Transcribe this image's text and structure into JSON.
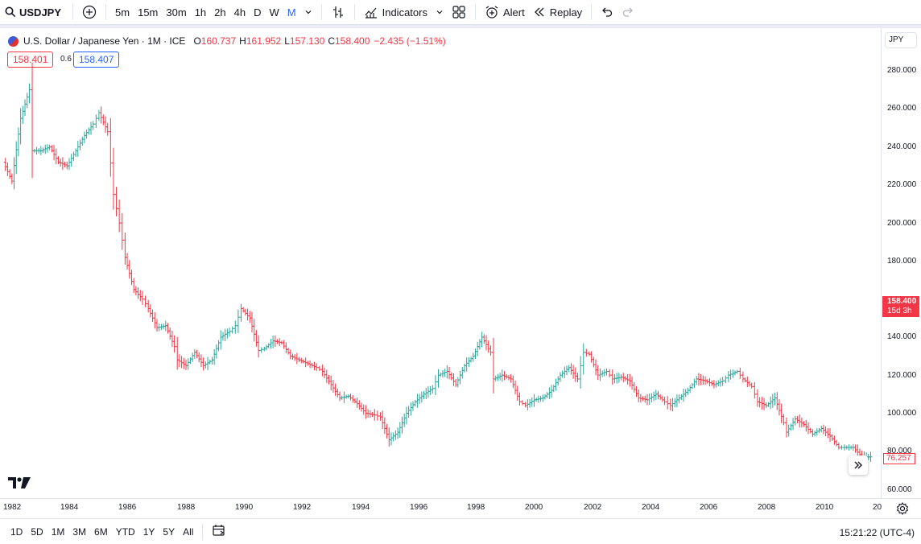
{
  "toolbar": {
    "symbol": "USDJPY",
    "intervals": [
      "5m",
      "15m",
      "30m",
      "1h",
      "2h",
      "4h",
      "D",
      "W",
      "M"
    ],
    "active_interval": "M",
    "indicators_label": "Indicators",
    "alert_label": "Alert",
    "replay_label": "Replay"
  },
  "legend": {
    "title": "U.S. Dollar / Japanese Yen · 1M · ICE",
    "open_k": "O",
    "open": "160.737",
    "high_k": "H",
    "high": "161.952",
    "low_k": "L",
    "low": "157.130",
    "close_k": "C",
    "close": "158.400",
    "change": "−2.435 (−1.51%)",
    "bid": "158.401",
    "spread": "0.6",
    "ask": "158.407"
  },
  "price_axis": {
    "currency": "JPY",
    "labels": [
      "280.000",
      "260.000",
      "240.000",
      "220.000",
      "200.000",
      "180.000",
      "140.000",
      "120.000",
      "100.000",
      "80.000",
      "60.000"
    ],
    "last_price": "158.400",
    "countdown": "15d 3h",
    "low_marker": "76.257"
  },
  "time_axis": {
    "labels": [
      "1982",
      "1984",
      "1986",
      "1988",
      "1990",
      "1992",
      "1994",
      "1996",
      "1998",
      "2000",
      "2002",
      "2004",
      "2006",
      "2008",
      "2010",
      "20"
    ]
  },
  "bottom": {
    "ranges": [
      "1D",
      "5D",
      "1M",
      "3M",
      "6M",
      "YTD",
      "1Y",
      "5Y",
      "All"
    ],
    "clock": "15:21:22 (UTC-4)"
  },
  "colors": {
    "up": "#26a69a",
    "down": "#f23645",
    "accent": "#2962ff"
  },
  "chart_data": {
    "type": "ohlc",
    "title": "U.S. Dollar / Japanese Yen · 1M · ICE",
    "x_range": [
      1982,
      2012
    ],
    "ylim": [
      60,
      290
    ],
    "grid": false,
    "points": [
      [
        1982.0,
        232
      ],
      [
        1982.3,
        222
      ],
      [
        1982.6,
        255
      ],
      [
        1982.9,
        270
      ],
      [
        1983.0,
        238
      ],
      [
        1983.3,
        238
      ],
      [
        1983.6,
        240
      ],
      [
        1983.9,
        232
      ],
      [
        1984.2,
        230
      ],
      [
        1984.5,
        238
      ],
      [
        1984.8,
        246
      ],
      [
        1985.1,
        252
      ],
      [
        1985.3,
        258
      ],
      [
        1985.6,
        248
      ],
      [
        1985.8,
        215
      ],
      [
        1986.0,
        200
      ],
      [
        1986.2,
        182
      ],
      [
        1986.5,
        165
      ],
      [
        1986.8,
        160
      ],
      [
        1987.0,
        155
      ],
      [
        1987.3,
        145
      ],
      [
        1987.6,
        146
      ],
      [
        1987.9,
        135
      ],
      [
        1988.0,
        128
      ],
      [
        1988.3,
        125
      ],
      [
        1988.6,
        132
      ],
      [
        1988.9,
        125
      ],
      [
        1989.2,
        128
      ],
      [
        1989.5,
        140
      ],
      [
        1989.8,
        143
      ],
      [
        1990.0,
        146
      ],
      [
        1990.2,
        155
      ],
      [
        1990.5,
        150
      ],
      [
        1990.8,
        133
      ],
      [
        1991.0,
        134
      ],
      [
        1991.3,
        138
      ],
      [
        1991.6,
        137
      ],
      [
        1991.9,
        130
      ],
      [
        1992.2,
        128
      ],
      [
        1992.5,
        126
      ],
      [
        1992.8,
        124
      ],
      [
        1993.0,
        122
      ],
      [
        1993.3,
        115
      ],
      [
        1993.6,
        108
      ],
      [
        1993.9,
        109
      ],
      [
        1994.2,
        105
      ],
      [
        1994.5,
        100
      ],
      [
        1994.8,
        99
      ],
      [
        1995.0,
        98
      ],
      [
        1995.3,
        86
      ],
      [
        1995.6,
        90
      ],
      [
        1995.9,
        100
      ],
      [
        1996.2,
        106
      ],
      [
        1996.5,
        110
      ],
      [
        1996.8,
        113
      ],
      [
        1997.0,
        120
      ],
      [
        1997.3,
        122
      ],
      [
        1997.6,
        115
      ],
      [
        1997.9,
        125
      ],
      [
        1998.2,
        130
      ],
      [
        1998.5,
        140
      ],
      [
        1998.8,
        132
      ],
      [
        1998.9,
        118
      ],
      [
        1999.2,
        120
      ],
      [
        1999.5,
        118
      ],
      [
        1999.8,
        106
      ],
      [
        2000.0,
        104
      ],
      [
        2000.3,
        107
      ],
      [
        2000.6,
        108
      ],
      [
        2000.9,
        112
      ],
      [
        2001.2,
        120
      ],
      [
        2001.5,
        124
      ],
      [
        2001.8,
        118
      ],
      [
        2002.0,
        132
      ],
      [
        2002.2,
        131
      ],
      [
        2002.5,
        120
      ],
      [
        2002.8,
        122
      ],
      [
        2003.0,
        118
      ],
      [
        2003.3,
        119
      ],
      [
        2003.6,
        117
      ],
      [
        2003.9,
        108
      ],
      [
        2004.2,
        107
      ],
      [
        2004.5,
        110
      ],
      [
        2004.8,
        106
      ],
      [
        2005.0,
        104
      ],
      [
        2005.3,
        108
      ],
      [
        2005.6,
        112
      ],
      [
        2005.9,
        118
      ],
      [
        2006.2,
        117
      ],
      [
        2006.5,
        115
      ],
      [
        2006.8,
        117
      ],
      [
        2007.0,
        120
      ],
      [
        2007.3,
        122
      ],
      [
        2007.5,
        118
      ],
      [
        2007.8,
        114
      ],
      [
        2008.0,
        106
      ],
      [
        2008.3,
        104
      ],
      [
        2008.6,
        108
      ],
      [
        2008.9,
        95
      ],
      [
        2009.0,
        90
      ],
      [
        2009.3,
        97
      ],
      [
        2009.6,
        94
      ],
      [
        2009.9,
        89
      ],
      [
        2010.2,
        92
      ],
      [
        2010.5,
        88
      ],
      [
        2010.8,
        82
      ],
      [
        2011.0,
        82
      ],
      [
        2011.3,
        82
      ],
      [
        2011.6,
        77
      ],
      [
        2011.9,
        77
      ]
    ]
  }
}
